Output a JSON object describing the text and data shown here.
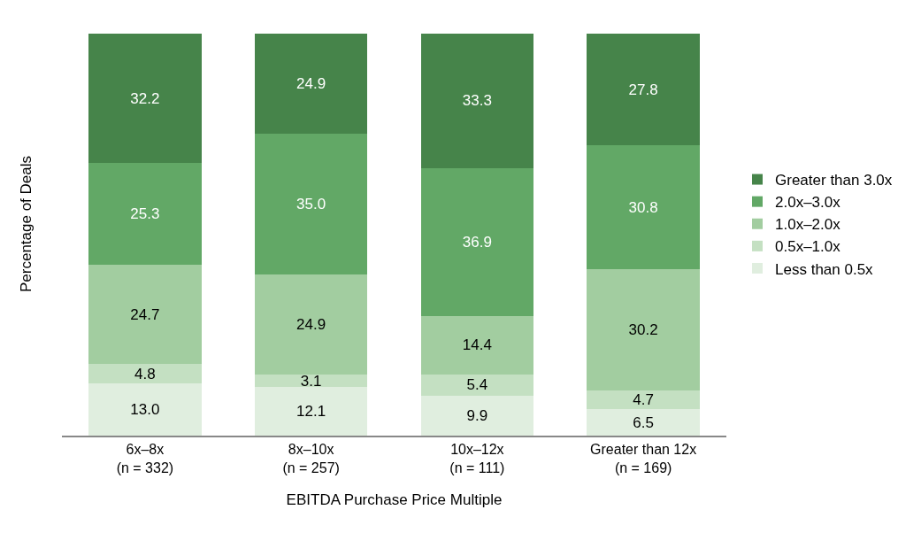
{
  "chart_data": {
    "type": "bar",
    "stacked": true,
    "legend": "right",
    "xlabel": "EBITDA Purchase Price Multiple",
    "ylabel": "Percentage of Deals",
    "categories": [
      "6x–8x\n(n = 332)",
      "8x–10x\n(n = 257)",
      "10x–12x\n(n = 111)",
      "Greater than 12x\n(n = 169)"
    ],
    "series": [
      {
        "name": "Less than 0.5x",
        "color": "#e0eedf",
        "values": [
          13.0,
          12.1,
          9.9,
          6.5
        ],
        "value_labels": [
          "13.0",
          "12.1",
          "9.9",
          "6.5"
        ]
      },
      {
        "name": "0.5x–1.0x",
        "color": "#c4e0c2",
        "values": [
          4.8,
          3.1,
          5.4,
          4.7
        ],
        "value_labels": [
          "4.8",
          "3.1",
          "5.4",
          "4.7"
        ]
      },
      {
        "name": "1.0x–2.0x",
        "color": "#a2cda0",
        "values": [
          24.7,
          24.9,
          14.4,
          30.2
        ],
        "value_labels": [
          "24.7",
          "24.9",
          "14.4",
          "30.2"
        ]
      },
      {
        "name": "2.0x–3.0x",
        "color": "#62a866",
        "values": [
          25.3,
          35.0,
          36.9,
          30.8
        ],
        "value_labels": [
          "25.3",
          "35.0",
          "36.9",
          "30.8"
        ]
      },
      {
        "name": "Greater than 3.0x",
        "color": "#46844a",
        "values": [
          32.2,
          24.9,
          33.3,
          27.8
        ],
        "value_labels": [
          "32.2",
          "24.9",
          "33.3",
          "27.8"
        ]
      }
    ]
  }
}
